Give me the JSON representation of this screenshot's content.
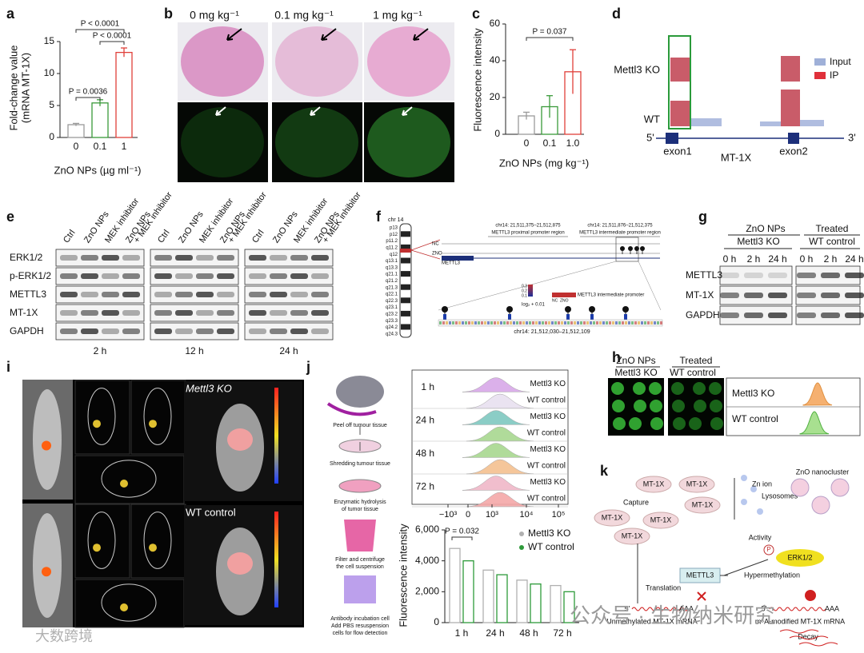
{
  "panel_labels": [
    "a",
    "b",
    "c",
    "d",
    "e",
    "f",
    "g",
    "h",
    "i",
    "j",
    "k"
  ],
  "chart_data": [
    {
      "type": "bar",
      "ylabel": [
        "Fold-change value",
        "(mRNA MT-1X)"
      ],
      "xlabel": "ZnO NPs (µg ml⁻¹)",
      "categories": [
        "0",
        "0.1",
        "1"
      ],
      "values": [
        2.0,
        5.4,
        13.3
      ],
      "errors": [
        0.2,
        0.5,
        0.7
      ],
      "colors": [
        "#9a9a9a",
        "#3a9a3a",
        "#e0403a"
      ],
      "ylim": [
        0,
        15
      ],
      "yticks": [
        0,
        5,
        10,
        15
      ],
      "annotations": [
        "P = 0.0036",
        "P < 0.0001",
        "P < 0.0001"
      ]
    },
    {
      "type": "bar",
      "ylabel": "Fluorescence intensity",
      "xlabel": "ZnO NPs (mg kg⁻¹)",
      "categories": [
        "0",
        "0.1",
        "1.0"
      ],
      "values": [
        10,
        15,
        34
      ],
      "errors": [
        2,
        6,
        12
      ],
      "colors": [
        "#9a9a9a",
        "#3a9a3a",
        "#e0403a"
      ],
      "ylim": [
        0,
        60
      ],
      "yticks": [
        0,
        20,
        40,
        60
      ],
      "annotations": [
        "P = 0.037"
      ]
    },
    {
      "type": "grouped_bar",
      "ylabel": "Fluorescence intensity",
      "categories": [
        "1 h",
        "24 h",
        "48 h",
        "72 h"
      ],
      "series": [
        {
          "name": "Mettl3 KO",
          "color": "#b0b0b0",
          "values": [
            4800,
            3400,
            2750,
            2400
          ]
        },
        {
          "name": "WT control",
          "color": "#2e9a3a",
          "values": [
            4000,
            3100,
            2500,
            2000
          ]
        }
      ],
      "ylim": [
        0,
        6000
      ],
      "yticks": [
        0,
        {
          "value": 2000,
          "label": "2,000"
        },
        {
          "value": 4000,
          "label": "4,000"
        },
        {
          "value": 6000,
          "label": "6,000"
        }
      ],
      "annotations": [
        "P = 0.032"
      ]
    }
  ],
  "b": {
    "doses": [
      "0 mg kg⁻¹",
      "0.1 mg kg⁻¹",
      "1 mg kg⁻¹"
    ]
  },
  "d": {
    "rows": [
      "Mettl3 KO",
      "WT"
    ],
    "legend": [
      "Input",
      "IP"
    ],
    "ends": [
      "5'",
      "3'"
    ],
    "exons": [
      "exon1",
      "exon2"
    ],
    "gene": "MT-1X"
  },
  "e": {
    "lanes": [
      [
        "Ctrl"
      ],
      [
        "ZnO NPs"
      ],
      [
        "MEK inhibitor"
      ],
      [
        "ZnO NPs",
        "+ MEK inhibitor"
      ]
    ],
    "rows": [
      "ERK1/2",
      "p-ERK1/2",
      "METTL3",
      "MT-1X",
      "GAPDH"
    ],
    "times": [
      "2 h",
      "12 h",
      "24 h"
    ]
  },
  "f": {
    "chromosome": "chr 14",
    "bands": [
      "p13",
      "p12",
      "p11.2",
      "q11.2",
      "q12",
      "q13.1",
      "q13.3",
      "q21.1",
      "q21.2",
      "q21.3",
      "q22.1",
      "q22.3",
      "q23.1",
      "q23.2",
      "q23.3",
      "q24.2",
      "q24.3"
    ],
    "tracks": [
      "NC",
      "ZNO",
      "METTL3"
    ],
    "regions": [
      [
        "chr14: 21,511,375–21,512,875",
        "METTL3 proximal promoter region"
      ],
      [
        "chr14: 21,511,876–21,512,375",
        "METTL3 intermediate promoter region"
      ]
    ],
    "legend_ticks": [
      0.3,
      0.2,
      0.1
    ],
    "legend_title": "METTL3 intermediate promoter",
    "legend_groups": [
      "NC",
      "ZNO"
    ],
    "legend_scale": "log₂ + 0.01",
    "locus": "chr14: 21,512,030–21,512,109"
  },
  "g": {
    "treatment": [
      "ZnO NPs",
      "Treated"
    ],
    "groups": [
      "Mettl3 KO",
      "WT control"
    ],
    "times": [
      "0 h",
      "2 h",
      "24 h"
    ],
    "rows": [
      "METTL3",
      "MT-1X",
      "GAPDH"
    ]
  },
  "h": {
    "treatment": [
      "ZnO NPs",
      "Treated"
    ],
    "groups": [
      "Mettl3 KO",
      "WT control"
    ]
  },
  "i": {
    "groups": [
      "Mettl3 KO",
      "WT control"
    ]
  },
  "j": {
    "steps": [
      [
        "Peel off tumour tissue"
      ],
      [
        "Shredding tumour tissue"
      ],
      [
        "Enzymatic hydrolysis",
        "of tumor tissue"
      ],
      [
        "Filter and centrifuge",
        "the cell suspension"
      ],
      [
        "Antibody incubation cell",
        "Add PBS resuspension",
        "cells for flow detection"
      ]
    ],
    "times": [
      "1 h",
      "24 h",
      "48 h",
      "72 h"
    ],
    "groups": [
      "Mettl3 KO",
      "WT control"
    ],
    "flow_ticks": [
      "−10³",
      "0",
      "10³",
      "10⁴",
      "10⁵"
    ]
  },
  "k": {
    "mt1x": "MT-1X",
    "zn_ion": "Zn ion",
    "nanocluster": "ZnO nanocluster",
    "lysosomes": "Lysosomes",
    "capture": "Capture",
    "activity": "Activity",
    "phospho": "P",
    "erk": "ERK1/2",
    "mettl3": "METTL3",
    "hypermethylation": "Hypermethylation",
    "translation": "Translation",
    "five_prime": "5'",
    "poly_a": "AAA",
    "unmethylated": "Unmethylated MT-1X mRNA",
    "modified": "m⁶A-modified MT-1X mRNA",
    "decay": "Decay"
  },
  "watermarks": [
    "公众号 · 生物纳米研究",
    "大数跨境"
  ]
}
